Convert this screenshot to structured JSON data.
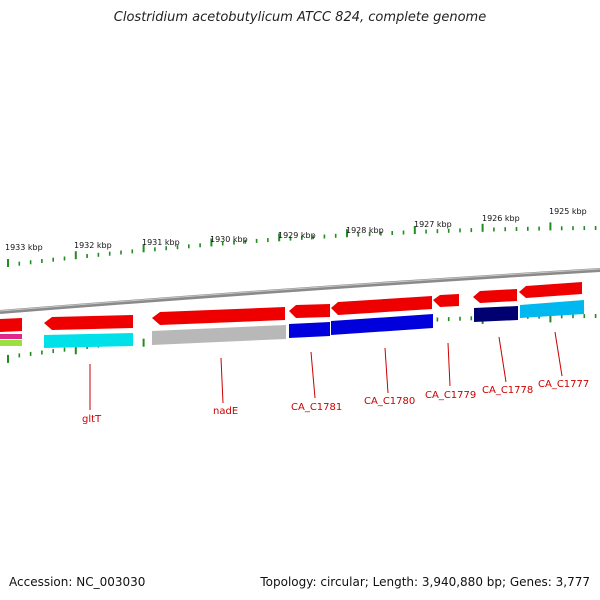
{
  "title": "Clostridium acetobutylicum ATCC 824, complete genome",
  "footer": {
    "accession": "Accession: NC_003030",
    "summary": "Topology: circular; Length: 3,940,880 bp; Genes: 3,777"
  },
  "scale_labels": [
    "1933 kbp",
    "1932 kbp",
    "1931 kbp",
    "1930 kbp",
    "1929 kbp",
    "1928 kbp",
    "1927 kbp",
    "1926 kbp",
    "1925 kbp"
  ],
  "gene_labels": [
    "gltT",
    "nadE",
    "CA_C1781",
    "CA_C1780",
    "CA_C1779",
    "CA_C1778",
    "CA_C1777"
  ],
  "colors": {
    "gene_arrow": "#ee0000",
    "backbone": "#888888",
    "tick": "#228b22",
    "label": "#cc0000",
    "cyan": "#00e0e8",
    "gray": "#b8b8b8",
    "blue": "#0000dd",
    "navy": "#000070",
    "sky": "#00b8f0"
  }
}
